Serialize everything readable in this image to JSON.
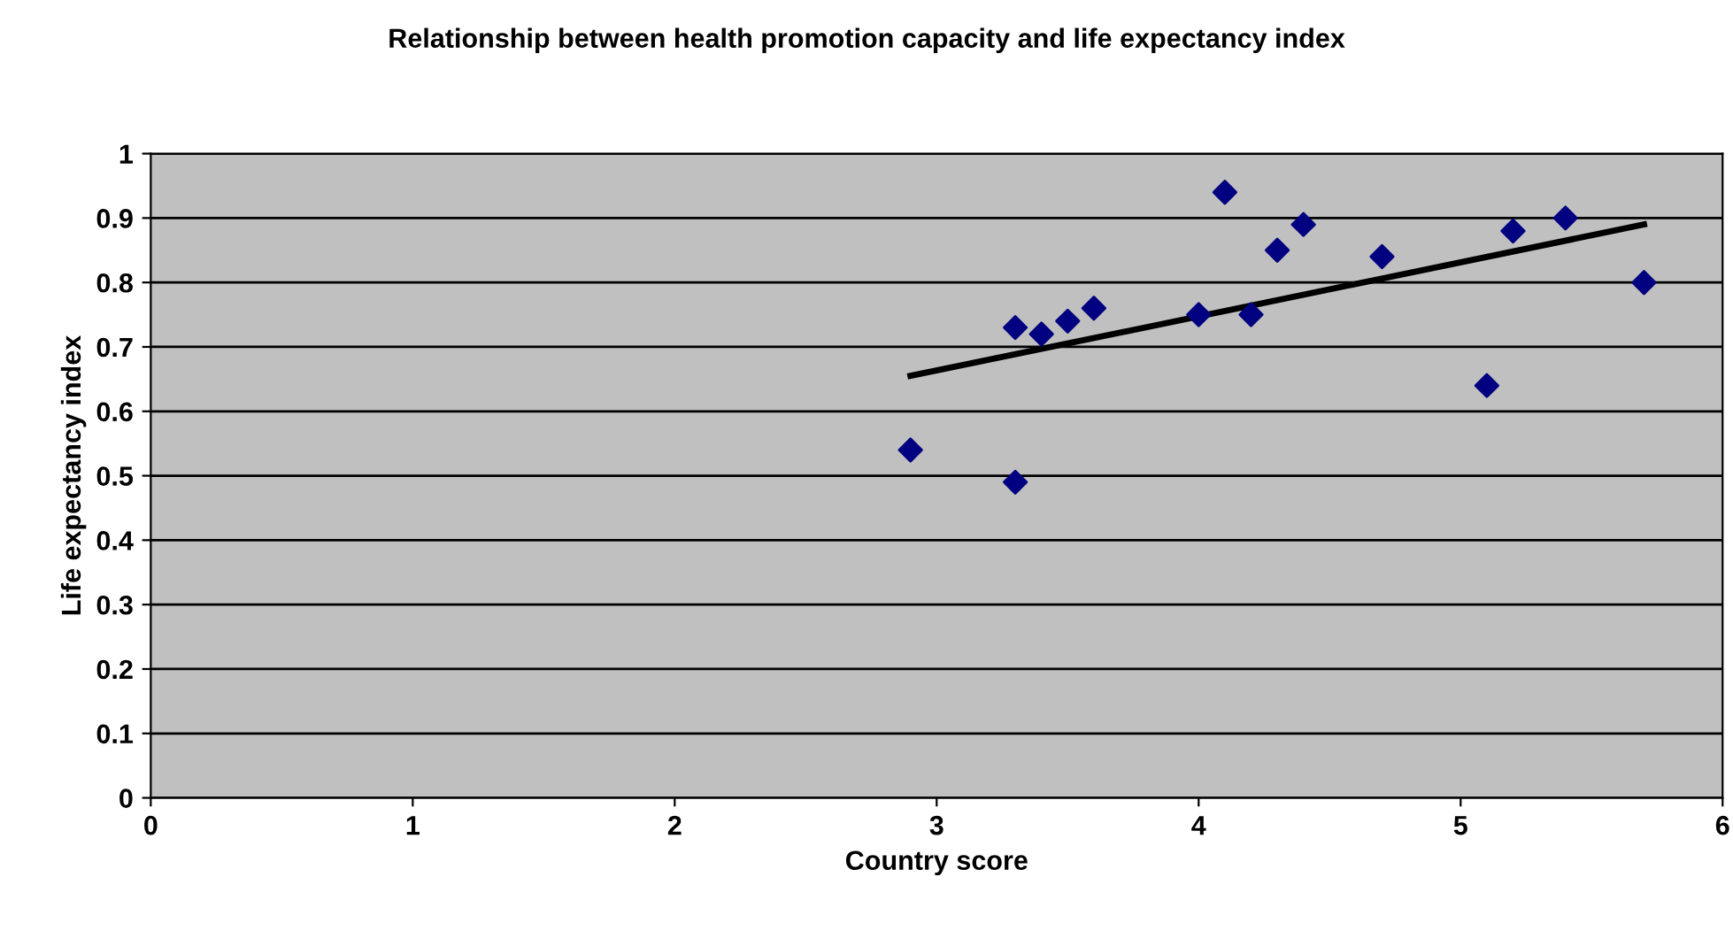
{
  "chart_data": {
    "type": "scatter",
    "title": "Relationship between health promotion capacity and life expectancy index",
    "xlabel": "Country score",
    "ylabel": "Life expectancy index",
    "series": [
      {
        "color": "#000080",
        "marker": "diamond",
        "x": [
          2.9,
          3.3,
          3.3,
          3.4,
          3.5,
          3.6,
          4.0,
          4.1,
          4.2,
          4.3,
          4.4,
          4.7,
          5.1,
          5.2,
          5.4,
          5.7
        ],
        "values": [
          0.54,
          0.73,
          0.49,
          0.72,
          0.74,
          0.76,
          0.75,
          0.94,
          0.75,
          0.85,
          0.89,
          0.84,
          0.64,
          0.88,
          0.9,
          0.8
        ]
      },
      {
        "type": "line",
        "color": "#000000",
        "marker": "none",
        "x": [
          2.9,
          5.7
        ],
        "values": [
          0.655,
          0.89
        ]
      }
    ],
    "xlim": [
      0,
      6
    ],
    "ylim": [
      0,
      1
    ],
    "xticks": [
      0,
      1,
      2,
      3,
      4,
      5,
      6
    ],
    "yticks": [
      0,
      0.1,
      0.2,
      0.3,
      0.4,
      0.5,
      0.6,
      0.7,
      0.8,
      0.9,
      1
    ],
    "grid": "y",
    "legend": false
  }
}
